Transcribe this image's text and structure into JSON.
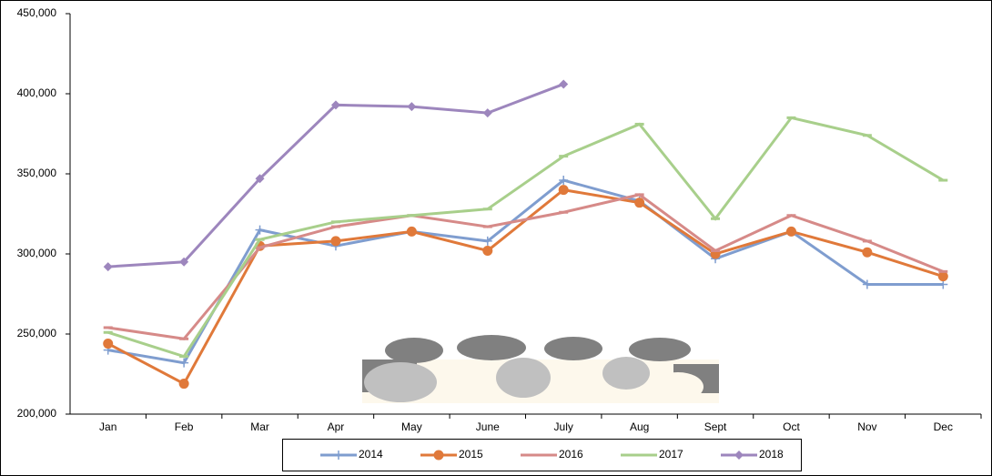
{
  "chart_data": {
    "type": "line",
    "categories": [
      "Jan",
      "Feb",
      "Mar",
      "Apr",
      "May",
      "June",
      "July",
      "Aug",
      "Sept",
      "Oct",
      "Nov",
      "Dec"
    ],
    "ylim": [
      200000,
      450000
    ],
    "yticks": [
      {
        "value": 200000,
        "label": "200,000"
      },
      {
        "value": 250000,
        "label": "250,000"
      },
      {
        "value": 300000,
        "label": "300,000"
      },
      {
        "value": 350000,
        "label": "350,000"
      },
      {
        "value": 400000,
        "label": "400,000"
      },
      {
        "value": 450000,
        "label": "450,000"
      }
    ],
    "grid": false,
    "legend": "bottom",
    "series": [
      {
        "name": "2014",
        "color": "#7f9dcf",
        "marker": "plus",
        "values": [
          240000,
          232000,
          315000,
          305000,
          314000,
          308000,
          346000,
          333000,
          297000,
          314000,
          281000,
          281000
        ]
      },
      {
        "name": "2015",
        "color": "#e0793a",
        "marker": "circle",
        "values": [
          244000,
          219000,
          305000,
          308000,
          314000,
          302000,
          340000,
          332000,
          300000,
          314000,
          301000,
          286000
        ]
      },
      {
        "name": "2016",
        "color": "#d68a88",
        "marker": "dash",
        "values": [
          254000,
          247000,
          304000,
          317000,
          324000,
          317000,
          326000,
          337000,
          302000,
          324000,
          308000,
          289000
        ]
      },
      {
        "name": "2017",
        "color": "#a8cf8b",
        "marker": "dash",
        "values": [
          251000,
          236000,
          309000,
          320000,
          324000,
          328000,
          361000,
          381000,
          322000,
          385000,
          374000,
          346000
        ]
      },
      {
        "name": "2018",
        "color": "#9d86bd",
        "marker": "diamond",
        "values": [
          292000,
          295000,
          347000,
          393000,
          392000,
          388000,
          406000,
          null,
          null,
          null,
          null,
          null
        ]
      }
    ]
  }
}
